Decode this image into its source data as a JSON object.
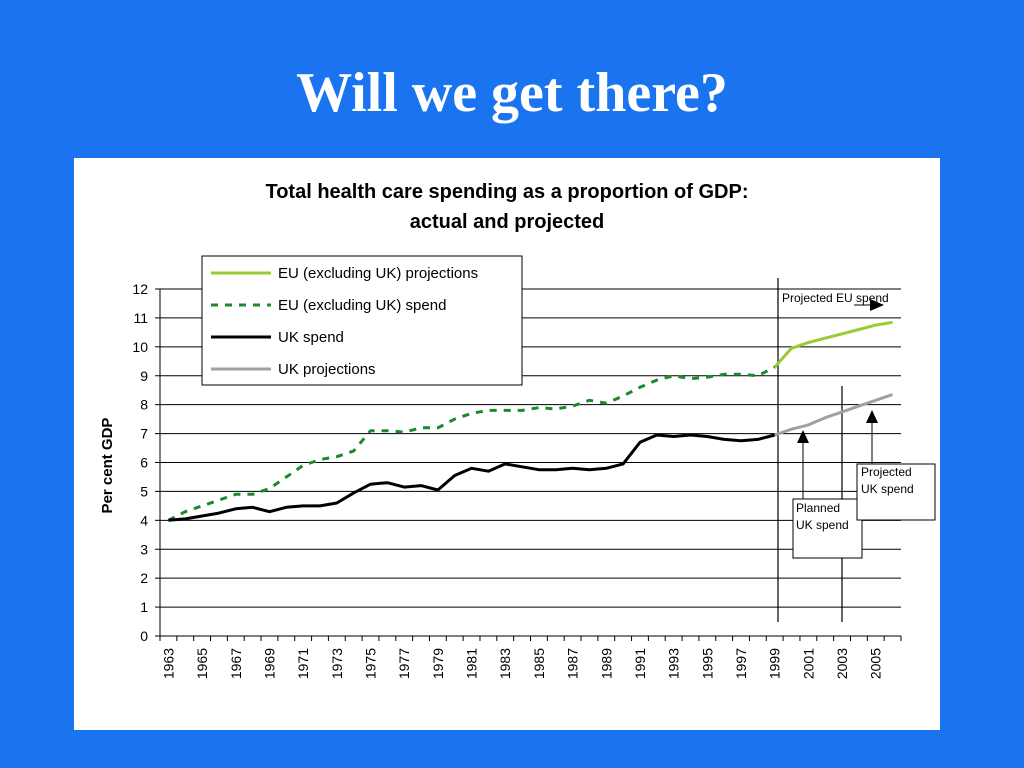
{
  "slide": {
    "title": "Will we get there?"
  },
  "colors": {
    "background": "#1a74f0",
    "eu_projection": "#99cc33",
    "eu_spend": "#1a8a2a",
    "uk_spend": "#000000",
    "uk_projection": "#a0a0a0"
  },
  "chart_data": {
    "type": "line",
    "title_lines": [
      "Total health care spending as a proportion of GDP:",
      "actual and projected"
    ],
    "xlabel": "",
    "ylabel": "Per cent GDP",
    "ylim": [
      0,
      12
    ],
    "yticks": [
      0,
      1,
      2,
      3,
      4,
      5,
      6,
      7,
      8,
      9,
      10,
      11,
      12
    ],
    "xlim": [
      1963,
      2006
    ],
    "xtick_labels": [
      "1963",
      "1965",
      "1967",
      "1969",
      "1971",
      "1973",
      "1975",
      "1977",
      "1979",
      "1981",
      "1983",
      "1985",
      "1987",
      "1989",
      "1991",
      "1993",
      "1995",
      "1997",
      "1999",
      "2001",
      "2003",
      "2005"
    ],
    "grid": "horizontal",
    "legend_position": "top-left",
    "series": [
      {
        "name": "EU (excluding UK) projections",
        "style": "solid",
        "color_key": "eu_projection",
        "x": [
          1999,
          2000,
          2001,
          2002,
          2003,
          2004,
          2005,
          2006
        ],
        "y": [
          9.3,
          9.95,
          10.15,
          10.3,
          10.45,
          10.6,
          10.75,
          10.85
        ]
      },
      {
        "name": "EU (excluding UK) spend",
        "style": "dashed",
        "color_key": "eu_spend",
        "x": [
          1963,
          1964,
          1965,
          1966,
          1967,
          1968,
          1969,
          1970,
          1971,
          1972,
          1973,
          1974,
          1975,
          1976,
          1977,
          1978,
          1979,
          1980,
          1981,
          1982,
          1983,
          1984,
          1985,
          1986,
          1987,
          1988,
          1989,
          1990,
          1991,
          1992,
          1993,
          1994,
          1995,
          1996,
          1997,
          1998,
          1999
        ],
        "y": [
          4.0,
          4.3,
          4.5,
          4.7,
          4.9,
          4.9,
          5.1,
          5.5,
          5.9,
          6.1,
          6.2,
          6.4,
          7.1,
          7.1,
          7.05,
          7.2,
          7.2,
          7.5,
          7.7,
          7.8,
          7.8,
          7.8,
          7.9,
          7.85,
          7.95,
          8.15,
          8.05,
          8.3,
          8.6,
          8.85,
          9.0,
          8.9,
          8.95,
          9.05,
          9.05,
          9.0,
          9.3
        ]
      },
      {
        "name": "UK spend",
        "style": "solid",
        "color_key": "uk_spend",
        "x": [
          1963,
          1964,
          1965,
          1966,
          1967,
          1968,
          1969,
          1970,
          1971,
          1972,
          1973,
          1974,
          1975,
          1976,
          1977,
          1978,
          1979,
          1980,
          1981,
          1982,
          1983,
          1984,
          1985,
          1986,
          1987,
          1988,
          1989,
          1990,
          1991,
          1992,
          1993,
          1994,
          1995,
          1996,
          1997,
          1998,
          1999
        ],
        "y": [
          4.0,
          4.05,
          4.15,
          4.25,
          4.4,
          4.45,
          4.3,
          4.45,
          4.5,
          4.5,
          4.6,
          4.95,
          5.25,
          5.3,
          5.15,
          5.2,
          5.05,
          5.55,
          5.8,
          5.7,
          5.95,
          5.85,
          5.75,
          5.75,
          5.8,
          5.75,
          5.8,
          5.95,
          6.7,
          6.95,
          6.9,
          6.95,
          6.9,
          6.8,
          6.75,
          6.8,
          6.95
        ]
      },
      {
        "name": "UK projections",
        "style": "solid",
        "color_key": "uk_projection",
        "x": [
          1999,
          2000,
          2001,
          2002,
          2003,
          2004,
          2005,
          2006
        ],
        "y": [
          6.95,
          7.15,
          7.3,
          7.55,
          7.75,
          7.95,
          8.15,
          8.35
        ]
      }
    ],
    "annotations": [
      {
        "text_lines": [
          "Projected EU spend"
        ]
      },
      {
        "text_lines": [
          "Planned",
          "UK spend"
        ]
      },
      {
        "text_lines": [
          "Projected",
          "UK spend"
        ]
      }
    ]
  }
}
